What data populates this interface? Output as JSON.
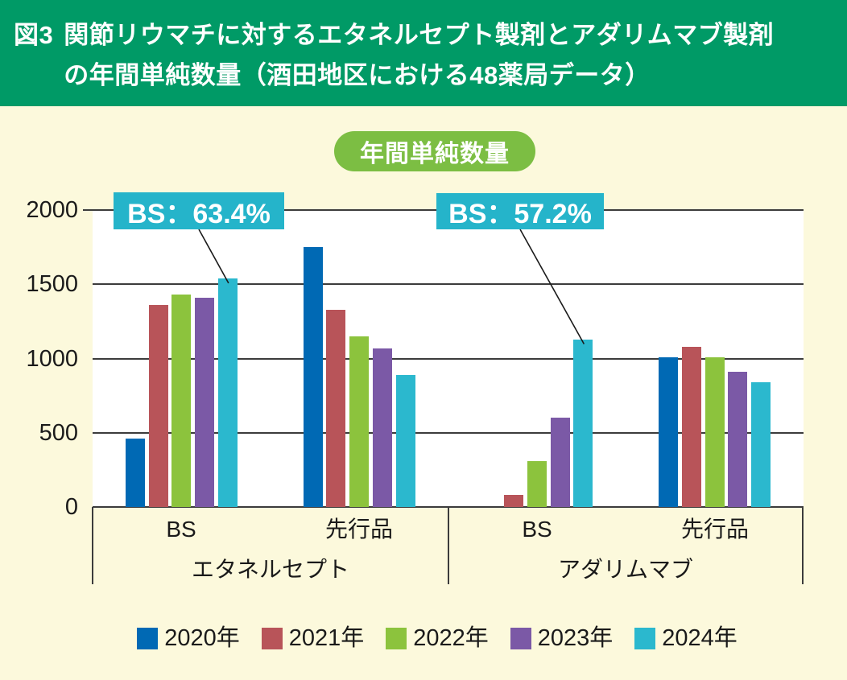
{
  "header": {
    "fig_label": "図3",
    "title_line1": "関節リウマチに対するエタネルセプト製剤とアダリムマブ製剤",
    "title_line2": "の年間単純数量（酒田地区における48薬局データ）"
  },
  "badge_label": "年間単純数量",
  "chart_data": {
    "type": "bar",
    "title": "年間単純数量",
    "xlabel": "",
    "ylabel": "",
    "ylim": [
      0,
      2000
    ],
    "yticks": [
      0,
      500,
      1000,
      1500,
      2000
    ],
    "grid": true,
    "legend_position": "bottom",
    "categories": [
      "エタネルセプト",
      "アダリムマブ"
    ],
    "groups": [
      {
        "category": "エタネルセプト",
        "subgroup": "BS",
        "values": [
          460,
          1360,
          1430,
          1410,
          1540
        ]
      },
      {
        "category": "エタネルセプト",
        "subgroup": "先行品",
        "values": [
          1750,
          1330,
          1150,
          1070,
          890
        ]
      },
      {
        "category": "アダリムマブ",
        "subgroup": "BS",
        "values": [
          0,
          80,
          310,
          600,
          1130
        ]
      },
      {
        "category": "アダリムマブ",
        "subgroup": "先行品",
        "values": [
          1010,
          1080,
          1010,
          910,
          840
        ]
      }
    ],
    "series": [
      "2020年",
      "2021年",
      "2022年",
      "2023年",
      "2024年"
    ],
    "series_colors": [
      "#0069b4",
      "#b85459",
      "#8cc33d",
      "#7b59a6",
      "#2bb8ce"
    ],
    "annotations": [
      {
        "label": "BS：63.4%",
        "group_index": 0,
        "series_index": 4
      },
      {
        "label": "BS：57.2%",
        "group_index": 2,
        "series_index": 4
      }
    ]
  },
  "colors": {
    "header_green": "#009a66",
    "badge_green": "#7cbe43",
    "callout_cyan": "#25b4ca",
    "background_cream": "#fcf9dc",
    "plot_white": "#ffffff",
    "grid_line": "#3c3c3c",
    "leader_line": "#1a1a1a",
    "text_dark": "#1a1a1a",
    "title_text": "#ffffff"
  }
}
